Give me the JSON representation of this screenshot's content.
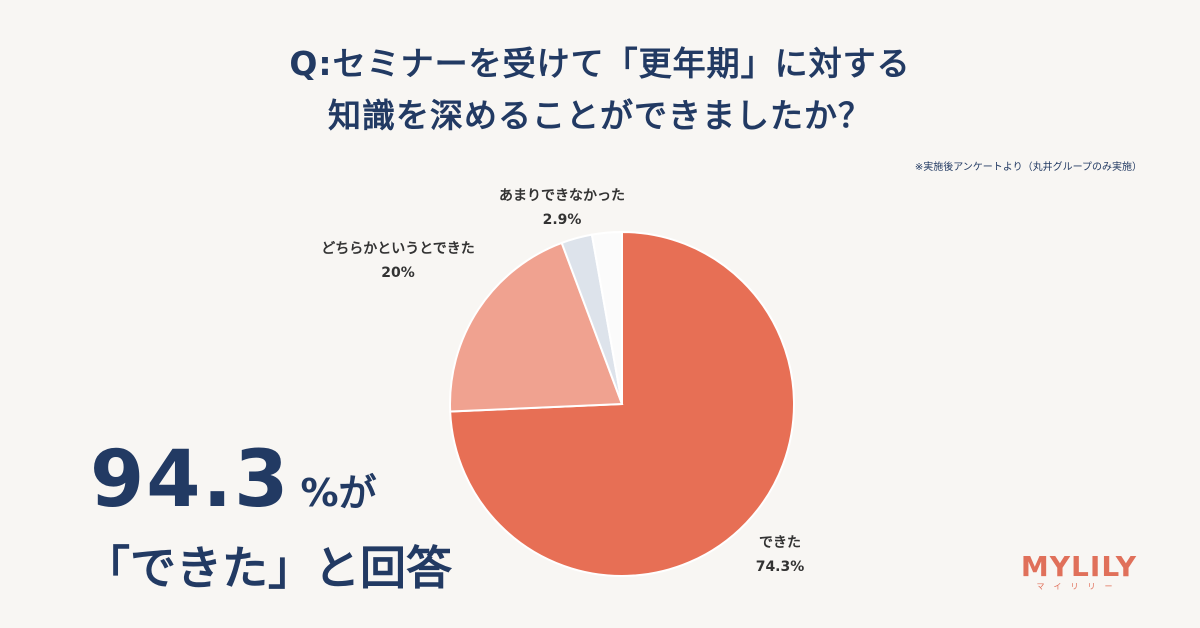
{
  "title": {
    "line1": "Q:セミナーを受けて「更年期」に対する",
    "line2": "知識を深めることができましたか？"
  },
  "note": "※実施後アンケートより（丸井グループのみ実施）",
  "headline": {
    "number": "94.3",
    "suffix": "%が",
    "line2": "「できた」と回答"
  },
  "logo": {
    "main": "MYLILY",
    "sub": "マイリリー"
  },
  "colors": {
    "background": "#f8f6f3",
    "text": "#223a63",
    "accent": "#e0705a"
  },
  "chart_data": {
    "type": "pie",
    "start": "12 o'clock",
    "direction": "clockwise",
    "slices": [
      {
        "label": "できた",
        "value": 74.3,
        "value_label": "74.3%",
        "color": "#e76f55"
      },
      {
        "label": "どちらかというとできた",
        "value": 20,
        "value_label": "20%",
        "color": "#f0a290"
      },
      {
        "label": "あまりできなかった",
        "value": 2.9,
        "value_label": "2.9%",
        "color": "#dde3eb"
      },
      {
        "label": "",
        "value": 2.8,
        "value_label": "",
        "color": "#fbfbfb"
      }
    ]
  }
}
